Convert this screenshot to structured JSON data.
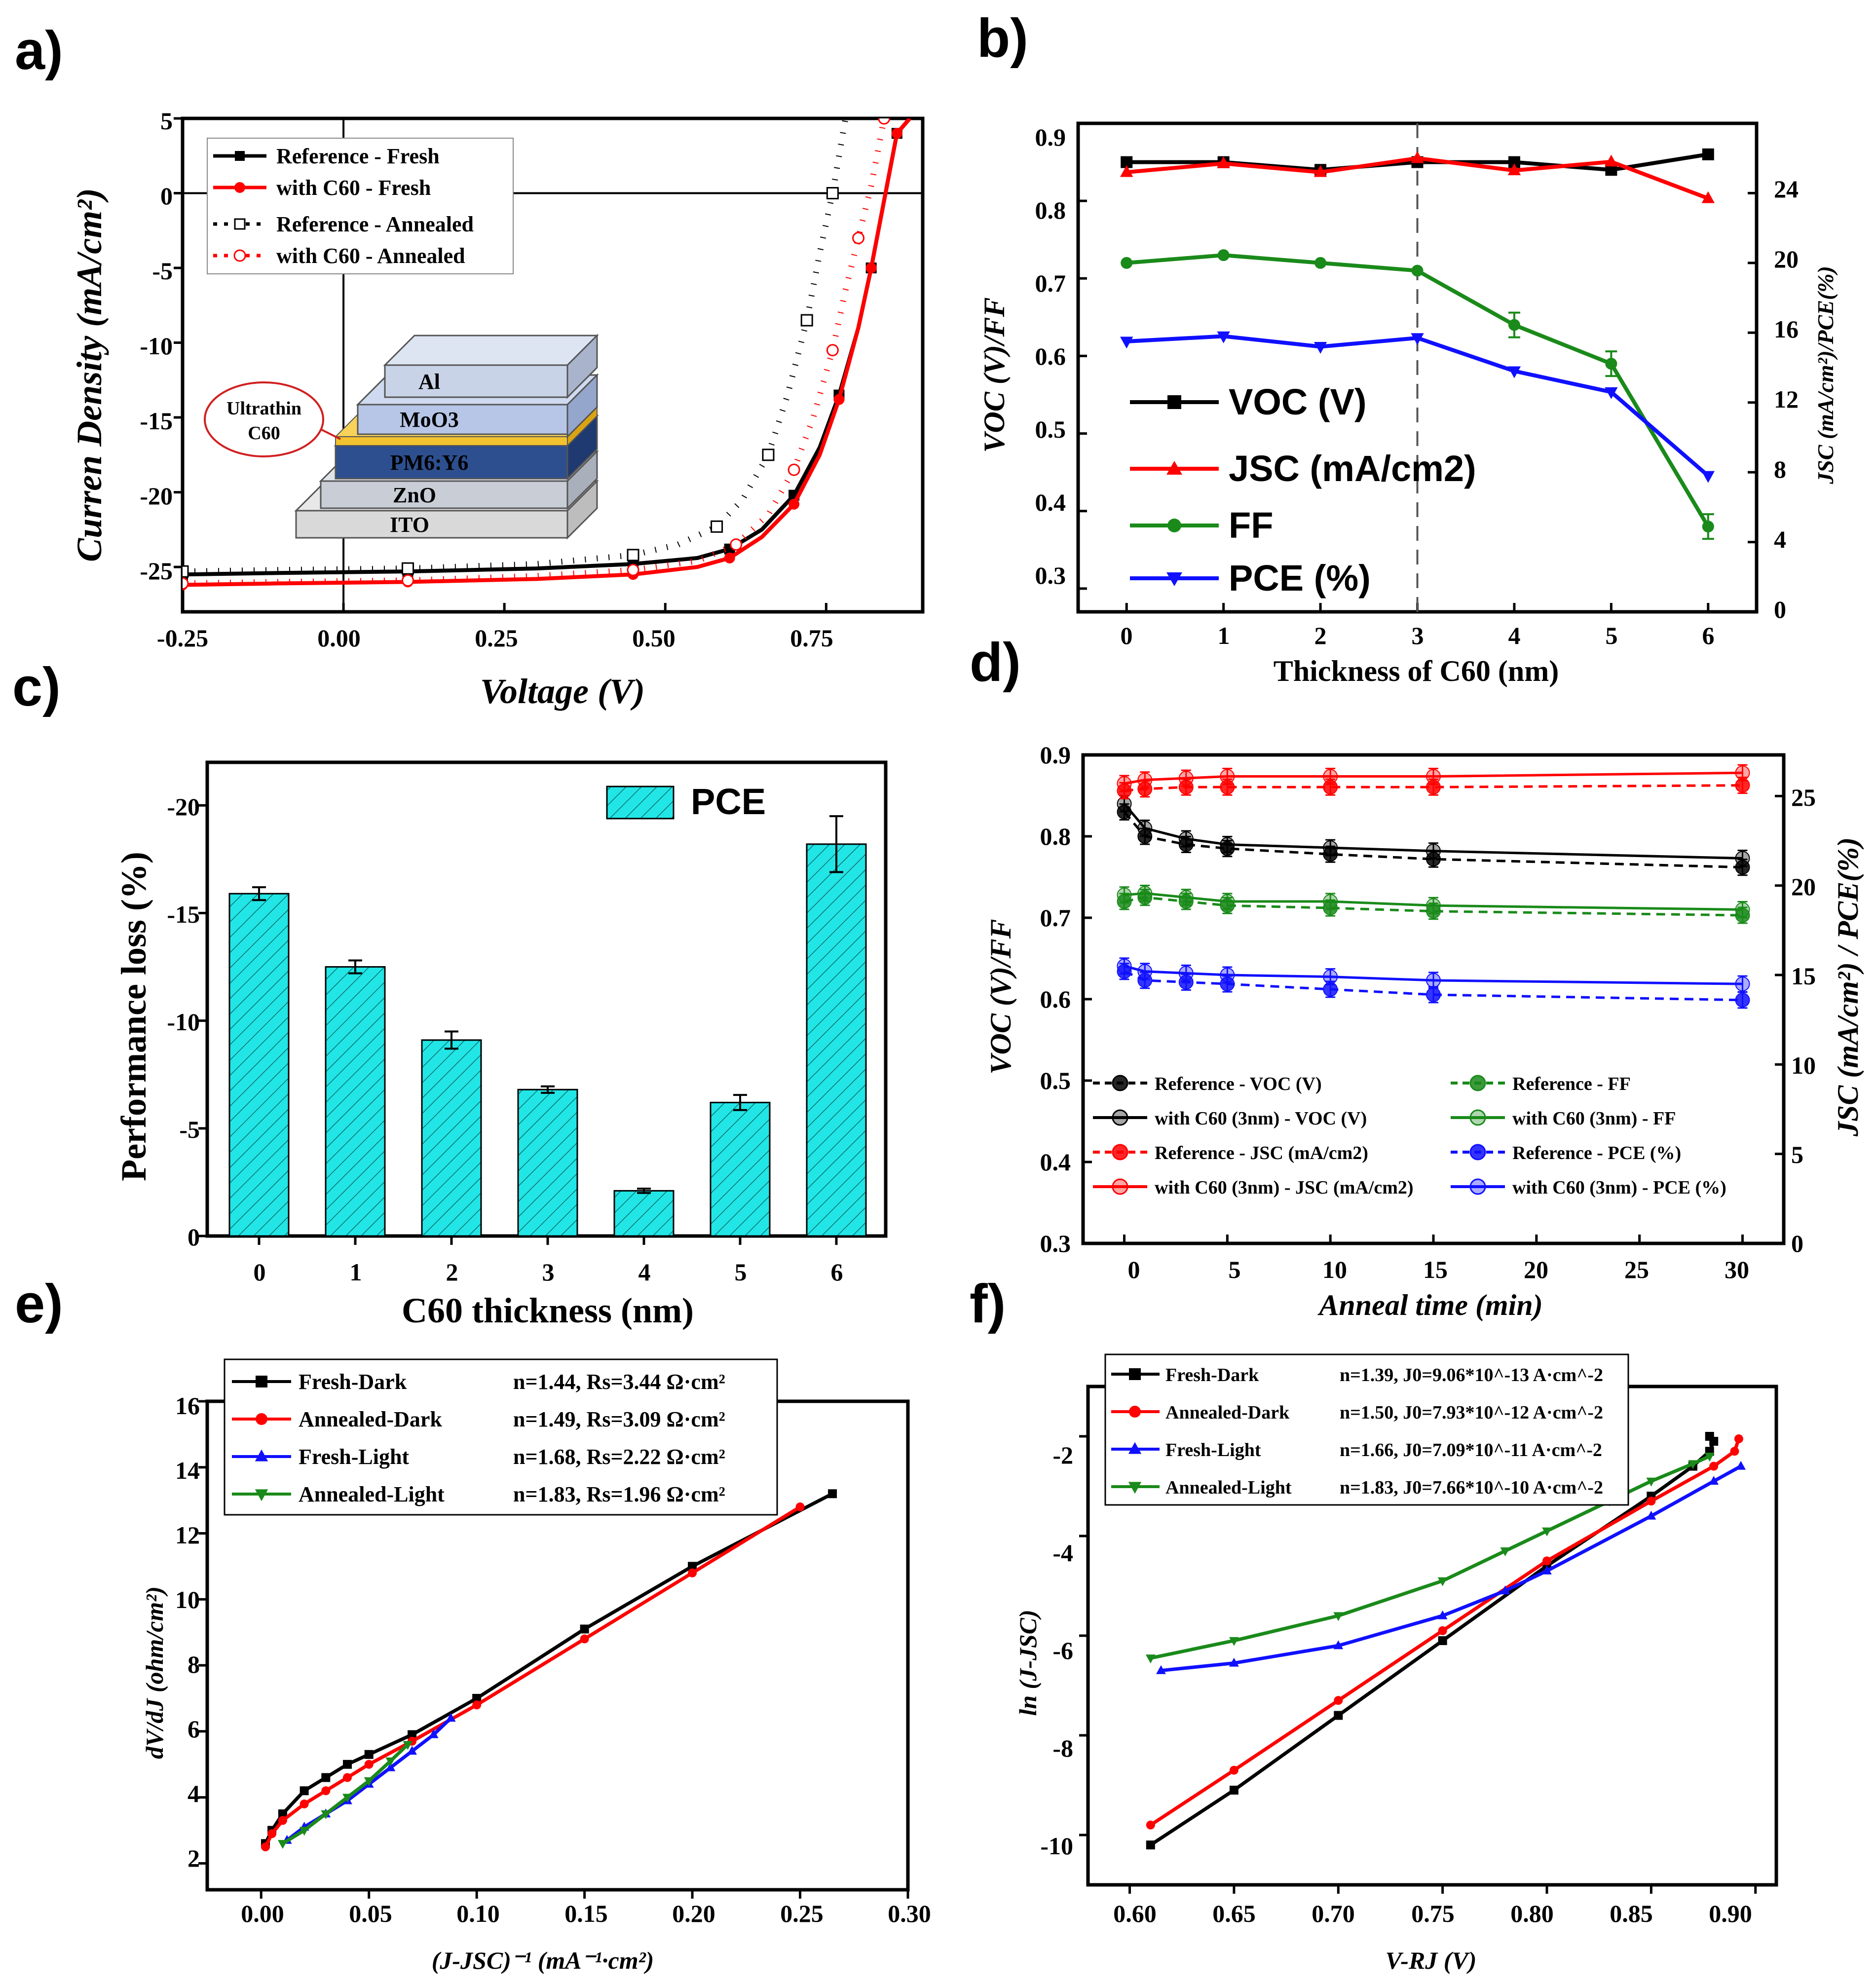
{
  "panels": {
    "a": {
      "label": "a)",
      "xlabel": "Voltage (V)",
      "ylabel": "Curren Density (mA/cm²)",
      "xticks": [
        "-0.25",
        "0.00",
        "0.25",
        "0.50",
        "0.75"
      ],
      "yticks": [
        "5",
        "0",
        "-5",
        "-10",
        "-15",
        "-20",
        "-25"
      ]
    },
    "b": {
      "label": "b)",
      "xlabel": "Thickness of C60 (nm)",
      "ylabel_left": "VOC (V)/FF",
      "ylabel_right": "JSC (mA/cm²)/PCE(%)",
      "xticks": [
        "0",
        "1",
        "2",
        "3",
        "4",
        "5",
        "6"
      ],
      "yticks_left": [
        "0.9",
        "0.8",
        "0.7",
        "0.6",
        "0.5",
        "0.4",
        "0.3"
      ],
      "yticks_right": [
        "24",
        "20",
        "16",
        "12",
        "8",
        "4",
        "0"
      ]
    },
    "c": {
      "label": "c)",
      "xlabel": "C60 thickness (nm)",
      "ylabel": "Performance loss (%)",
      "xticks": [
        "0",
        "1",
        "2",
        "3",
        "4",
        "5",
        "6"
      ],
      "yticks": [
        "-20",
        "-15",
        "-10",
        "-5",
        "0"
      ]
    },
    "d": {
      "label": "d)",
      "xlabel": "Anneal time (min)",
      "ylabel_left": "VOC (V)/FF",
      "ylabel_right": "JSC (mA/cm²) / PCE(%)",
      "xticks": [
        "0",
        "5",
        "10",
        "15",
        "20",
        "25",
        "30"
      ],
      "yticks_left": [
        "0.9",
        "0.8",
        "0.7",
        "0.6",
        "0.5",
        "0.4",
        "0.3"
      ],
      "yticks_right": [
        "25",
        "20",
        "15",
        "10",
        "5",
        "0"
      ]
    },
    "e": {
      "label": "e)",
      "xlabel": "(J-JSC)⁻¹ (mA⁻¹·cm²)",
      "ylabel": "dV/dJ (ohm/cm²)",
      "xticks": [
        "0.00",
        "0.05",
        "0.10",
        "0.15",
        "0.20",
        "0.25",
        "0.30"
      ],
      "yticks": [
        "16",
        "14",
        "12",
        "10",
        "8",
        "6",
        "4",
        "2"
      ]
    },
    "f": {
      "label": "f)",
      "xlabel": "V-RJ (V)",
      "ylabel": "ln (J-JSC)",
      "xticks": [
        "0.60",
        "0.65",
        "0.70",
        "0.75",
        "0.80",
        "0.85",
        "0.90"
      ],
      "yticks": [
        "-2",
        "-4",
        "-6",
        "-8",
        "-10"
      ]
    }
  },
  "device_stack": {
    "layers": [
      "Al",
      "MoO3",
      "PM6:Y6",
      "ZnO",
      "ITO"
    ],
    "callout_line1": "Ultrathin",
    "callout_line2": "C60",
    "colors": {
      "al": "#c9d3e8",
      "moo3": "#b7c6e6",
      "c60": "#f2c230",
      "active": "#2e4f8f",
      "zno": "#c8cdd6",
      "ito": "#d9d9d9"
    }
  },
  "colors": {
    "black": "#000000",
    "red": "#ff0000",
    "green": "#1a8a1a",
    "blue": "#1010ff",
    "cyan": "#22e6e6"
  },
  "chart_data": [
    {
      "id": "a",
      "type": "line",
      "title": "",
      "xlabel": "Voltage (V)",
      "ylabel": "Curren Density (mA/cm2)",
      "xlim": [
        -0.25,
        0.9
      ],
      "ylim": [
        -28,
        5
      ],
      "series": [
        {
          "name": "Reference - Fresh",
          "style": "solid",
          "color": "#000000",
          "x": [
            -0.25,
            -0.1,
            0.1,
            0.3,
            0.45,
            0.55,
            0.6,
            0.65,
            0.7,
            0.74,
            0.77,
            0.8,
            0.82,
            0.84,
            0.86,
            0.88
          ],
          "y": [
            -25.5,
            -25.4,
            -25.3,
            -25.1,
            -24.8,
            -24.4,
            -23.8,
            -22.5,
            -20.2,
            -17,
            -13.5,
            -9,
            -5,
            -0.5,
            4,
            5
          ]
        },
        {
          "name": "with C60 - Fresh",
          "style": "solid",
          "color": "#ff0000",
          "x": [
            -0.25,
            -0.1,
            0.1,
            0.3,
            0.45,
            0.55,
            0.6,
            0.65,
            0.7,
            0.74,
            0.77,
            0.8,
            0.82,
            0.84,
            0.86,
            0.88
          ],
          "y": [
            -26.2,
            -26.1,
            -26,
            -25.8,
            -25.5,
            -25,
            -24.4,
            -23,
            -20.8,
            -17.5,
            -13.8,
            -9,
            -5,
            -0.5,
            4,
            5
          ]
        },
        {
          "name": "Reference - Annealed",
          "style": "dotted",
          "color": "#000000",
          "x": [
            -0.25,
            -0.1,
            0.1,
            0.3,
            0.45,
            0.52,
            0.58,
            0.62,
            0.66,
            0.69,
            0.72,
            0.74,
            0.76,
            0.78
          ],
          "y": [
            -25.3,
            -25.2,
            -25.1,
            -24.8,
            -24.2,
            -23.5,
            -22.3,
            -20.5,
            -17.5,
            -13.5,
            -8.5,
            -4,
            0,
            5
          ]
        },
        {
          "name": "with C60 - Annealed",
          "style": "dotted",
          "color": "#ff0000",
          "x": [
            -0.25,
            -0.1,
            0.1,
            0.3,
            0.45,
            0.55,
            0.61,
            0.66,
            0.7,
            0.73,
            0.76,
            0.78,
            0.8,
            0.82,
            0.84
          ],
          "y": [
            -26.1,
            -26,
            -25.9,
            -25.6,
            -25.2,
            -24.6,
            -23.5,
            -21.5,
            -18.5,
            -15,
            -10.5,
            -6.5,
            -3,
            0.5,
            5
          ]
        }
      ]
    },
    {
      "id": "b",
      "type": "line",
      "title": "",
      "xlabel": "Thickness of C60 (nm)",
      "ylabel": "VOC (V)/FF",
      "ylabel_right": "JSC (mA/cm2)/PCE(%)",
      "ylim": [
        0.27,
        0.9
      ],
      "ylim_right": [
        0,
        28
      ],
      "xlim": [
        -0.5,
        6.5
      ],
      "dashed_vline_x": 3,
      "x": [
        0,
        1,
        2,
        3,
        4,
        5,
        6
      ],
      "series": [
        {
          "name": "VOC (V)",
          "axis": "left",
          "marker": "square",
          "color": "#000000",
          "values": [
            0.85,
            0.85,
            0.84,
            0.85,
            0.85,
            0.84,
            0.86
          ]
        },
        {
          "name": "JSC (mA/cm2)",
          "axis": "right",
          "marker": "triangle-up",
          "color": "#ff0000",
          "values": [
            25.2,
            25.7,
            25.2,
            26,
            25.3,
            25.8,
            23.7
          ]
        },
        {
          "name": "FF",
          "axis": "left",
          "marker": "circle",
          "color": "#1a8a1a",
          "values": [
            0.72,
            0.73,
            0.72,
            0.71,
            0.64,
            0.59,
            0.38
          ]
        },
        {
          "name": "PCE (%)",
          "axis": "right",
          "marker": "triangle-down",
          "color": "#1010ff",
          "values": [
            15.5,
            15.8,
            15.2,
            15.7,
            13.8,
            12.6,
            7.8
          ]
        }
      ]
    },
    {
      "id": "c",
      "type": "bar",
      "title": "",
      "xlabel": "C60 thickness (nm)",
      "ylabel": "Performance loss (%)",
      "categories": [
        "0",
        "1",
        "2",
        "3",
        "4",
        "5",
        "6"
      ],
      "series": [
        {
          "name": "PCE",
          "values": [
            -15.9,
            -12.5,
            -9.1,
            -6.8,
            -2.1,
            -6.2,
            -18.2
          ],
          "errors": [
            0.3,
            0.3,
            0.4,
            0.15,
            0.1,
            0.35,
            1.3
          ]
        }
      ],
      "ylim": [
        0,
        -22
      ]
    },
    {
      "id": "d",
      "type": "line",
      "title": "",
      "xlabel": "Anneal time (min)",
      "ylabel": "VOC (V)/FF",
      "ylabel_right": "JSC (mA/cm2) / PCE(%)",
      "xlim": [
        -2,
        32
      ],
      "ylim": [
        0.3,
        0.9
      ],
      "ylim_right": [
        0,
        27.3
      ],
      "x": [
        0,
        1,
        3,
        5,
        10,
        15,
        30
      ],
      "series": [
        {
          "name": "Reference - VOC (V)",
          "axis": "left",
          "color": "#000000",
          "dash": true,
          "values": [
            0.83,
            0.8,
            0.79,
            0.785,
            0.778,
            0.772,
            0.762
          ]
        },
        {
          "name": "with C60 (3nm) - VOC (V)",
          "axis": "left",
          "color": "#000000",
          "dash": false,
          "values": [
            0.84,
            0.81,
            0.797,
            0.79,
            0.786,
            0.782,
            0.773
          ]
        },
        {
          "name": "Reference - JSC (mA/cm2)",
          "axis": "right",
          "color": "#ff0000",
          "dash": true,
          "values": [
            25.3,
            25.4,
            25.5,
            25.5,
            25.5,
            25.5,
            25.6
          ]
        },
        {
          "name": "with C60 (3nm) - JSC (mA/cm2)",
          "axis": "right",
          "color": "#ff0000",
          "dash": false,
          "values": [
            25.7,
            25.9,
            26,
            26.1,
            26.1,
            26.1,
            26.3
          ]
        },
        {
          "name": "Reference - FF",
          "axis": "left",
          "color": "#1a8a1a",
          "dash": true,
          "values": [
            0.72,
            0.725,
            0.72,
            0.715,
            0.712,
            0.708,
            0.703
          ]
        },
        {
          "name": "with C60 (3nm) - FF",
          "axis": "left",
          "color": "#1a8a1a",
          "dash": false,
          "values": [
            0.728,
            0.73,
            0.725,
            0.72,
            0.72,
            0.715,
            0.71
          ]
        },
        {
          "name": "Reference - PCE (%)",
          "axis": "right",
          "color": "#1010ff",
          "dash": true,
          "values": [
            15.2,
            14.7,
            14.6,
            14.5,
            14.2,
            13.9,
            13.6
          ]
        },
        {
          "name": "with C60 (3nm) - PCE (%)",
          "axis": "right",
          "color": "#1010ff",
          "dash": false,
          "values": [
            15.5,
            15.2,
            15.1,
            15,
            14.9,
            14.7,
            14.5
          ]
        }
      ]
    },
    {
      "id": "e",
      "type": "line",
      "title": "",
      "xlabel": "(J-JSC)^-1 (mA^-1·cm2)",
      "ylabel": "dV/dJ (ohm/cm2)",
      "xlim": [
        -0.025,
        0.3
      ],
      "ylim": [
        1.2,
        16
      ],
      "series": [
        {
          "name": "Fresh-Dark",
          "fit": "n=1.44, Rs=3.44 Ω·cm²",
          "marker": "square",
          "color": "#000000",
          "x": [
            0.002,
            0.005,
            0.01,
            0.02,
            0.03,
            0.04,
            0.05,
            0.07,
            0.1,
            0.15,
            0.2,
            0.265
          ],
          "y": [
            2.6,
            3.0,
            3.5,
            4.2,
            4.6,
            5.0,
            5.3,
            5.9,
            7.0,
            9.1,
            11.0,
            13.2
          ]
        },
        {
          "name": "Annealed-Dark",
          "fit": "n=1.49, Rs=3.09 Ω·cm²",
          "marker": "circle",
          "color": "#ff0000",
          "x": [
            0.002,
            0.005,
            0.01,
            0.02,
            0.03,
            0.04,
            0.05,
            0.07,
            0.1,
            0.15,
            0.2,
            0.25
          ],
          "y": [
            2.5,
            2.9,
            3.3,
            3.8,
            4.2,
            4.6,
            5.0,
            5.7,
            6.8,
            8.8,
            10.8,
            12.8
          ]
        },
        {
          "name": "Fresh-Light",
          "fit": "n=1.68, Rs=2.22 Ω·cm²",
          "marker": "triangle-up",
          "color": "#1010ff",
          "x": [
            0.012,
            0.02,
            0.03,
            0.04,
            0.05,
            0.06,
            0.07,
            0.08,
            0.088
          ],
          "y": [
            2.7,
            3.1,
            3.5,
            3.9,
            4.4,
            4.9,
            5.4,
            5.9,
            6.4
          ]
        },
        {
          "name": "Annealed-Light",
          "fit": "n=1.83, Rs=1.96 Ω·cm²",
          "marker": "triangle-down",
          "color": "#1a8a1a",
          "x": [
            0.01,
            0.02,
            0.03,
            0.04,
            0.05,
            0.06,
            0.068
          ],
          "y": [
            2.6,
            3.0,
            3.5,
            4.0,
            4.5,
            5.1,
            5.6
          ]
        }
      ]
    },
    {
      "id": "f",
      "type": "line",
      "title": "",
      "xlabel": "V-RJ (V)",
      "ylabel": "ln (J-JSC)",
      "xlim": [
        0.58,
        0.91
      ],
      "ylim": [
        -11,
        -1
      ],
      "series": [
        {
          "name": "Fresh-Dark",
          "fit": "n=1.39, J0=9.06*10^-13 A·cm^-2",
          "marker": "square",
          "color": "#000000",
          "x": [
            0.61,
            0.65,
            0.7,
            0.75,
            0.8,
            0.85,
            0.87,
            0.878,
            0.88,
            0.878
          ],
          "y": [
            -10.2,
            -9.1,
            -7.6,
            -6.1,
            -4.6,
            -3.2,
            -2.6,
            -2.3,
            -2.1,
            -2.0
          ]
        },
        {
          "name": "Annealed-Dark",
          "fit": "n=1.50, J0=7.93*10^-12 A·cm^-2",
          "marker": "circle",
          "color": "#ff0000",
          "x": [
            0.61,
            0.65,
            0.7,
            0.75,
            0.8,
            0.85,
            0.88,
            0.89,
            0.892
          ],
          "y": [
            -9.8,
            -8.7,
            -7.3,
            -5.9,
            -4.5,
            -3.3,
            -2.6,
            -2.3,
            -2.05
          ]
        },
        {
          "name": "Fresh-Light",
          "fit": "n=1.66, J0=7.09*10^-11 A·cm^-2",
          "marker": "triangle-up",
          "color": "#1010ff",
          "x": [
            0.615,
            0.65,
            0.7,
            0.75,
            0.78,
            0.8,
            0.85,
            0.88,
            0.893
          ],
          "y": [
            -6.7,
            -6.55,
            -6.2,
            -5.6,
            -5.1,
            -4.7,
            -3.6,
            -2.9,
            -2.6
          ]
        },
        {
          "name": "Annealed-Light",
          "fit": "n=1.83, J0=7.66*10^-10 A·cm^-2",
          "marker": "triangle-down",
          "color": "#1a8a1a",
          "x": [
            0.61,
            0.65,
            0.7,
            0.75,
            0.78,
            0.8,
            0.83,
            0.85,
            0.87,
            0.878
          ],
          "y": [
            -6.45,
            -6.1,
            -5.6,
            -4.9,
            -4.3,
            -3.9,
            -3.3,
            -2.9,
            -2.55,
            -2.4
          ]
        }
      ]
    }
  ]
}
